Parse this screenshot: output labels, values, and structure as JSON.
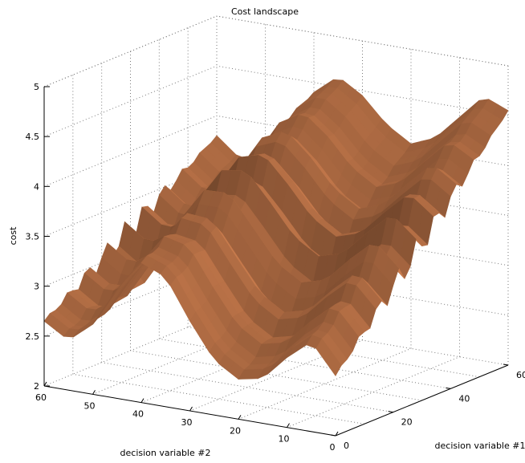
{
  "chart_data": {
    "type": "surface",
    "title": "Cost landscape",
    "xlabel": "decision variable #1",
    "ylabel": "decision variable #2",
    "zlabel": "cost",
    "xlim": [
      0,
      60
    ],
    "ylim": [
      0,
      60
    ],
    "zlim": [
      2,
      5
    ],
    "x_ticks": [
      "0",
      "20",
      "40",
      "60"
    ],
    "y_ticks": [
      "60",
      "50",
      "40",
      "30",
      "20",
      "10",
      "0"
    ],
    "z_ticks": [
      "2",
      "2.5",
      "3",
      "3.5",
      "4",
      "4.5",
      "5"
    ],
    "grid": true,
    "colormap": "copper",
    "surface_color": "#c77a4c",
    "surface_profile_along_dv2": {
      "dv2": [
        0,
        5,
        10,
        15,
        20,
        25,
        30,
        35,
        40,
        45,
        50,
        55,
        60
      ],
      "cost_at_dv1_0": [
        2.6,
        2.9,
        2.7,
        2.45,
        2.4,
        2.55,
        2.9,
        3.3,
        3.4,
        3.1,
        2.7,
        2.5,
        2.65
      ],
      "cost_at_dv1_60": [
        4.55,
        4.65,
        4.4,
        4.15,
        4.05,
        4.2,
        4.45,
        4.6,
        4.4,
        4.0,
        3.7,
        3.6,
        3.8
      ]
    }
  }
}
